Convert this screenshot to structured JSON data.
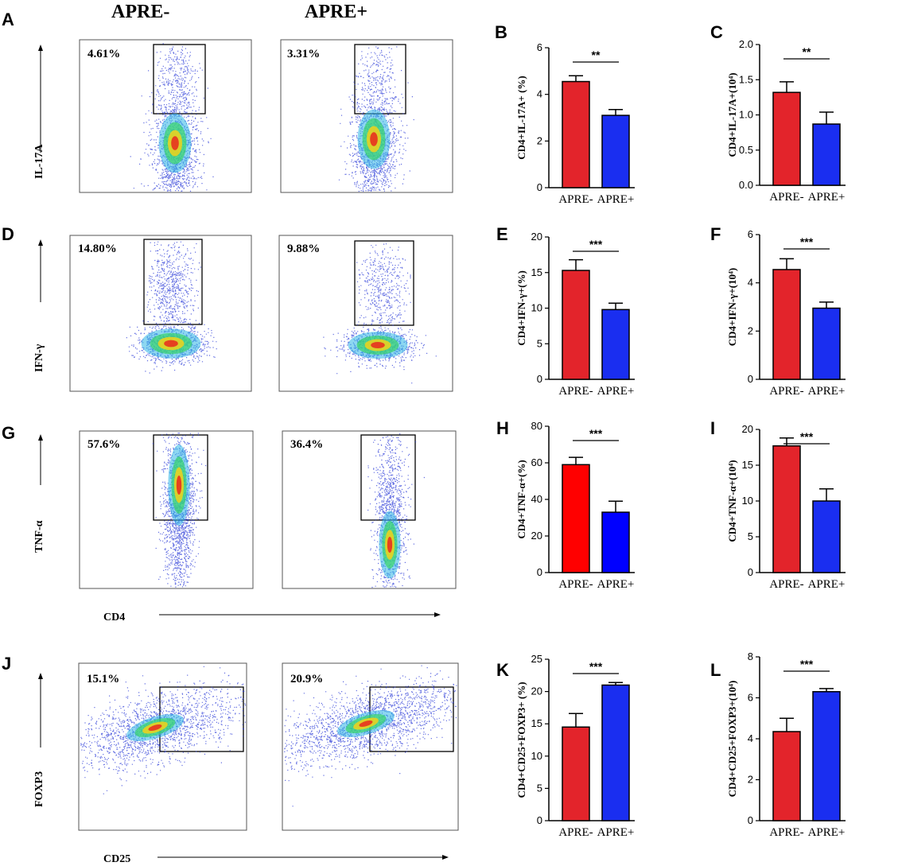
{
  "headers": {
    "left": "APRE-",
    "right": "APRE+"
  },
  "row_axes": [
    "IL-17A",
    "IFN-γ",
    "TNF-α",
    "FOXP3"
  ],
  "x_axes": {
    "cd4": "CD4",
    "cd25": "CD25"
  },
  "panel_letters": [
    "A",
    "B",
    "C",
    "D",
    "E",
    "F",
    "G",
    "H",
    "I",
    "J",
    "K",
    "L"
  ],
  "flow_percentages": [
    {
      "row": "IL-17A",
      "left": "4.61%",
      "right": "3.31%"
    },
    {
      "row": "IFN-γ",
      "left": "14.80%",
      "right": "9.88%"
    },
    {
      "row": "TNF-α",
      "left": "57.6%",
      "right": "36.4%"
    },
    {
      "row": "FOXP3",
      "left": "15.1%",
      "right": "20.9%"
    }
  ],
  "colors": {
    "red": "#e3242b",
    "blue": "#1a2ef0",
    "h_red": "#ff0000",
    "h_blue": "#0000ff"
  },
  "chart_data": [
    {
      "panel": "B",
      "type": "bar",
      "title": "",
      "ylabel": "CD4+IL-17A+ (%)",
      "categories": [
        "APRE-",
        "APRE+"
      ],
      "values": [
        4.55,
        3.1
      ],
      "errors": [
        0.25,
        0.25
      ],
      "ylim": [
        0,
        6
      ],
      "ticks": [
        "0",
        "2",
        "4",
        "6"
      ],
      "sig": "**"
    },
    {
      "panel": "C",
      "type": "bar",
      "title": "",
      "ylabel": "CD4+IL-17A+(10⁴)",
      "categories": [
        "APRE-",
        "APRE+"
      ],
      "values": [
        1.32,
        0.87
      ],
      "errors": [
        0.15,
        0.17
      ],
      "ylim": [
        0,
        2
      ],
      "ticks": [
        "0.0",
        "0.5",
        "1.0",
        "1.5",
        "2.0"
      ],
      "sig": "**"
    },
    {
      "panel": "E",
      "type": "bar",
      "title": "",
      "ylabel": "CD4+IFN-γ+(%)",
      "categories": [
        "APRE-",
        "APRE+"
      ],
      "values": [
        15.3,
        9.8
      ],
      "errors": [
        1.5,
        0.9
      ],
      "ylim": [
        0,
        20
      ],
      "ticks": [
        "0",
        "5",
        "10",
        "15",
        "20"
      ],
      "sig": "***"
    },
    {
      "panel": "F",
      "type": "bar",
      "title": "",
      "ylabel": "CD4+IFN-γ+(10⁴)",
      "categories": [
        "APRE-",
        "APRE+"
      ],
      "values": [
        4.55,
        2.95
      ],
      "errors": [
        0.45,
        0.25
      ],
      "ylim": [
        0,
        6
      ],
      "ticks": [
        "0",
        "2",
        "4",
        "6"
      ],
      "sig": "***"
    },
    {
      "panel": "H",
      "type": "bar",
      "title": "",
      "ylabel": "CD4+TNF-α+(%)",
      "categories": [
        "APRE-",
        "APRE+"
      ],
      "values": [
        59,
        33
      ],
      "errors": [
        4,
        6
      ],
      "ylim": [
        0,
        80
      ],
      "ticks": [
        "0",
        "20",
        "40",
        "60",
        "80"
      ],
      "sig": "***"
    },
    {
      "panel": "I",
      "type": "bar",
      "title": "",
      "ylabel": "CD4+TNF-α+(10⁴)",
      "categories": [
        "APRE-",
        "APRE+"
      ],
      "values": [
        17.7,
        10.0
      ],
      "errors": [
        1.1,
        1.7
      ],
      "ylim": [
        0,
        20
      ],
      "ticks": [
        "0",
        "5",
        "10",
        "15",
        "20"
      ],
      "sig": "***"
    },
    {
      "panel": "K",
      "type": "bar",
      "title": "",
      "ylabel": "CD4+CD25+FOXP3+ (%)",
      "categories": [
        "APRE-",
        "APRE+"
      ],
      "values": [
        14.5,
        21.0
      ],
      "errors": [
        2.1,
        0.4
      ],
      "ylim": [
        0,
        25
      ],
      "ticks": [
        "0",
        "5",
        "10",
        "15",
        "20",
        "25"
      ],
      "sig": "***"
    },
    {
      "panel": "L",
      "type": "bar",
      "title": "",
      "ylabel": "CD4+CD25+FOXP3+(10⁴)",
      "categories": [
        "APRE-",
        "APRE+"
      ],
      "values": [
        4.35,
        6.3
      ],
      "errors": [
        0.65,
        0.15
      ],
      "ylim": [
        0,
        8
      ],
      "ticks": [
        "0",
        "2",
        "4",
        "6",
        "8"
      ],
      "sig": "***"
    }
  ]
}
